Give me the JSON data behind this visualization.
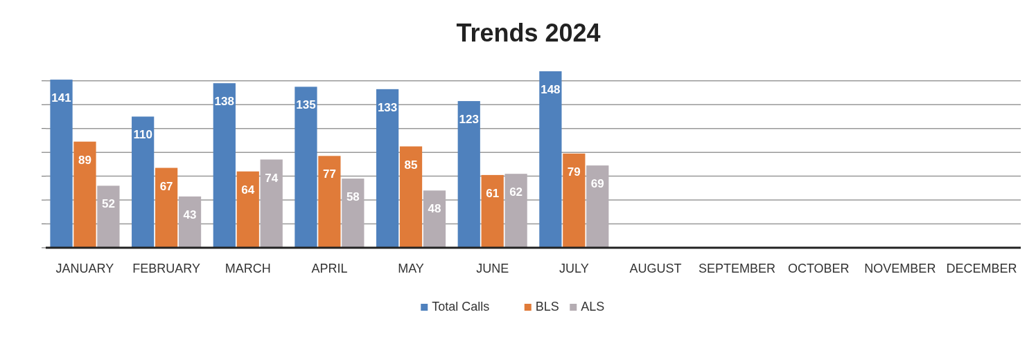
{
  "chart_data": {
    "type": "bar",
    "title": "Trends 2024",
    "categories": [
      "JANUARY",
      "FEBRUARY",
      "MARCH",
      "APRIL",
      "MAY",
      "JUNE",
      "JULY",
      "AUGUST",
      "SEPTEMBER",
      "OCTOBER",
      "NOVEMBER",
      "DECEMBER"
    ],
    "series": [
      {
        "name": "Total Calls",
        "color": "#4f81bd",
        "values": [
          141,
          110,
          138,
          135,
          133,
          123,
          148,
          null,
          null,
          null,
          null,
          null
        ]
      },
      {
        "name": "BLS",
        "color": "#e07b39",
        "values": [
          89,
          67,
          64,
          77,
          85,
          61,
          79,
          null,
          null,
          null,
          null,
          null
        ]
      },
      {
        "name": "ALS",
        "color": "#b5adb3",
        "values": [
          52,
          43,
          74,
          58,
          48,
          62,
          69,
          null,
          null,
          null,
          null,
          null
        ]
      }
    ],
    "yticks": [
      {
        "value": 0,
        "label": null
      },
      {
        "value": 20,
        "label": null
      },
      {
        "value": 40,
        "label": null
      },
      {
        "value": 60,
        "label": null
      },
      {
        "value": 80,
        "label": null
      },
      {
        "value": 100,
        "label": null
      },
      {
        "value": 120,
        "label": null
      },
      {
        "value": 140,
        "label": null
      }
    ],
    "grid": "y",
    "data_labels": true,
    "legend": "bottom",
    "tick_labels": "x"
  }
}
